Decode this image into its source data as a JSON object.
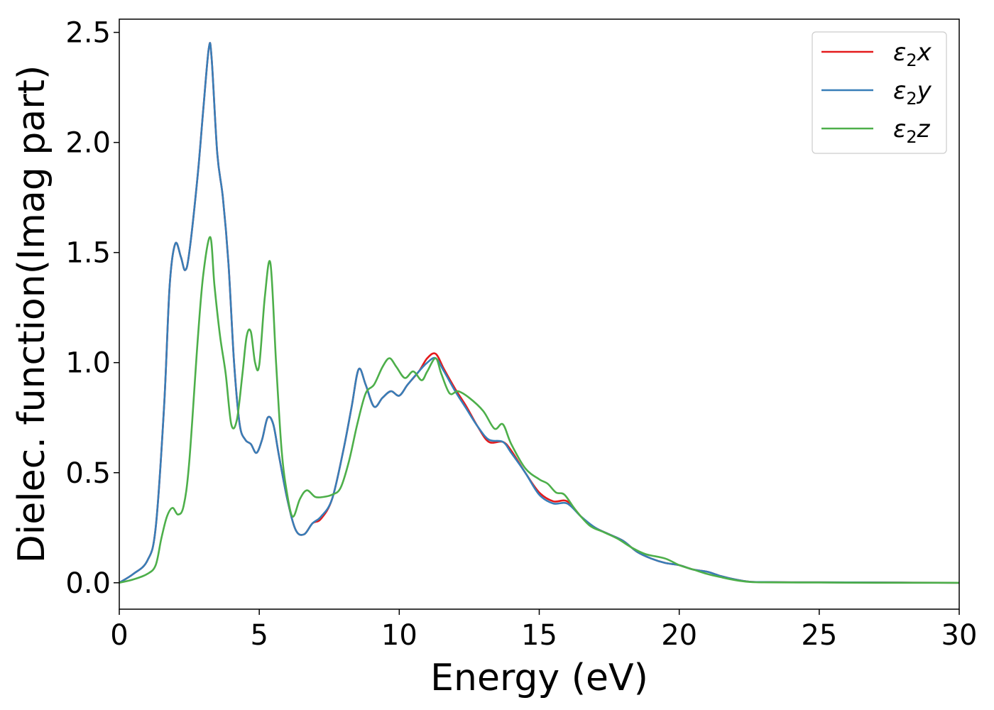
{
  "chart_data": {
    "type": "line",
    "xlabel": "Energy (eV)",
    "ylabel": "Dielec. function(Imag part)",
    "xlim": [
      0,
      30
    ],
    "ylim": [
      -0.12,
      2.56
    ],
    "xticks": [
      "0",
      "5",
      "10",
      "15",
      "20",
      "25",
      "30"
    ],
    "yticks": [
      "0.0",
      "0.5",
      "1.0",
      "1.5",
      "2.0",
      "2.5"
    ],
    "grid": false,
    "legend_position": "top-right",
    "series": [
      {
        "name": "x",
        "legend_label": "ε2x",
        "color": "#e41a1c",
        "x": [
          0,
          0.5,
          1.0,
          1.3,
          1.6,
          1.8,
          2.0,
          2.2,
          2.35,
          2.5,
          2.8,
          3.0,
          3.2,
          3.3,
          3.5,
          3.7,
          3.9,
          4.1,
          4.3,
          4.5,
          4.7,
          4.9,
          5.1,
          5.3,
          5.5,
          5.7,
          6.0,
          6.3,
          6.6,
          6.9,
          7.2,
          7.6,
          8.0,
          8.3,
          8.55,
          8.8,
          9.1,
          9.4,
          9.7,
          10.0,
          10.3,
          10.7,
          11.0,
          11.3,
          11.6,
          12.0,
          12.4,
          12.8,
          13.2,
          13.7,
          14.0,
          14.5,
          15.0,
          15.5,
          16.0,
          16.5,
          17.0,
          17.5,
          18.0,
          18.5,
          19.0,
          19.5,
          20.0,
          20.5,
          21.0,
          21.5,
          22.0,
          22.5,
          23.0,
          24.0,
          25.0,
          27.0,
          30.0
        ],
        "y": [
          0.0,
          0.04,
          0.1,
          0.25,
          0.8,
          1.35,
          1.54,
          1.48,
          1.42,
          1.5,
          1.85,
          2.15,
          2.43,
          2.38,
          1.95,
          1.75,
          1.45,
          1.0,
          0.72,
          0.65,
          0.63,
          0.59,
          0.65,
          0.75,
          0.72,
          0.58,
          0.38,
          0.24,
          0.22,
          0.27,
          0.29,
          0.38,
          0.6,
          0.8,
          0.97,
          0.9,
          0.8,
          0.84,
          0.87,
          0.85,
          0.9,
          0.96,
          1.02,
          1.04,
          0.97,
          0.88,
          0.8,
          0.71,
          0.64,
          0.64,
          0.6,
          0.5,
          0.41,
          0.37,
          0.37,
          0.3,
          0.25,
          0.22,
          0.19,
          0.14,
          0.11,
          0.09,
          0.08,
          0.06,
          0.05,
          0.03,
          0.015,
          0.005,
          0.003,
          0.002,
          0.002,
          0.001,
          0.0
        ]
      },
      {
        "name": "y",
        "legend_label": "ε2y",
        "color": "#377eb8",
        "x": [
          0,
          0.5,
          1.0,
          1.3,
          1.6,
          1.8,
          2.0,
          2.2,
          2.35,
          2.5,
          2.8,
          3.0,
          3.2,
          3.3,
          3.5,
          3.7,
          3.9,
          4.1,
          4.3,
          4.5,
          4.7,
          4.9,
          5.1,
          5.3,
          5.5,
          5.7,
          6.0,
          6.3,
          6.6,
          6.9,
          7.2,
          7.6,
          8.0,
          8.3,
          8.55,
          8.8,
          9.1,
          9.4,
          9.7,
          10.0,
          10.3,
          10.7,
          11.0,
          11.3,
          11.6,
          12.0,
          12.4,
          12.8,
          13.2,
          13.7,
          14.0,
          14.5,
          15.0,
          15.5,
          16.0,
          16.5,
          17.0,
          17.5,
          18.0,
          18.5,
          19.0,
          19.5,
          20.0,
          20.5,
          21.0,
          21.5,
          22.0,
          22.5,
          23.0,
          24.0,
          25.0,
          27.0,
          30.0
        ],
        "y": [
          0.0,
          0.04,
          0.1,
          0.25,
          0.8,
          1.35,
          1.54,
          1.48,
          1.42,
          1.5,
          1.85,
          2.15,
          2.43,
          2.38,
          1.95,
          1.75,
          1.45,
          1.0,
          0.72,
          0.65,
          0.63,
          0.59,
          0.65,
          0.75,
          0.72,
          0.58,
          0.38,
          0.24,
          0.22,
          0.27,
          0.3,
          0.38,
          0.6,
          0.8,
          0.97,
          0.9,
          0.8,
          0.84,
          0.87,
          0.85,
          0.9,
          0.96,
          1.0,
          1.02,
          0.96,
          0.87,
          0.79,
          0.71,
          0.65,
          0.64,
          0.59,
          0.5,
          0.4,
          0.36,
          0.36,
          0.3,
          0.25,
          0.22,
          0.19,
          0.14,
          0.11,
          0.09,
          0.08,
          0.06,
          0.05,
          0.03,
          0.015,
          0.005,
          0.003,
          0.002,
          0.002,
          0.001,
          0.0
        ]
      },
      {
        "name": "z",
        "legend_label": "ε2z",
        "color": "#4daf4a",
        "x": [
          0,
          0.5,
          1.0,
          1.3,
          1.5,
          1.7,
          1.9,
          2.1,
          2.3,
          2.5,
          2.8,
          3.0,
          3.25,
          3.4,
          3.6,
          3.8,
          4.0,
          4.2,
          4.4,
          4.55,
          4.7,
          4.85,
          5.0,
          5.2,
          5.4,
          5.6,
          5.8,
          6.0,
          6.2,
          6.45,
          6.7,
          7.0,
          7.3,
          7.6,
          7.9,
          8.2,
          8.5,
          8.8,
          9.1,
          9.4,
          9.65,
          9.9,
          10.2,
          10.5,
          10.8,
          11.0,
          11.3,
          11.5,
          11.8,
          12.1,
          12.5,
          13.0,
          13.4,
          13.7,
          14.0,
          14.5,
          15.0,
          15.3,
          15.6,
          15.9,
          16.3,
          16.8,
          17.3,
          17.8,
          18.3,
          18.8,
          19.5,
          20.0,
          20.5,
          21.0,
          21.5,
          22.0,
          22.5,
          23.0,
          25.0,
          27.0,
          30.0
        ],
        "y": [
          0.0,
          0.015,
          0.04,
          0.08,
          0.2,
          0.3,
          0.34,
          0.31,
          0.35,
          0.55,
          1.1,
          1.4,
          1.57,
          1.35,
          1.12,
          0.95,
          0.72,
          0.74,
          0.95,
          1.12,
          1.14,
          1.0,
          0.99,
          1.3,
          1.45,
          1.0,
          0.6,
          0.4,
          0.3,
          0.38,
          0.42,
          0.39,
          0.39,
          0.4,
          0.43,
          0.55,
          0.72,
          0.86,
          0.9,
          0.98,
          1.02,
          0.98,
          0.93,
          0.96,
          0.92,
          0.96,
          1.02,
          0.95,
          0.86,
          0.87,
          0.84,
          0.78,
          0.7,
          0.72,
          0.63,
          0.52,
          0.47,
          0.45,
          0.41,
          0.4,
          0.33,
          0.26,
          0.23,
          0.2,
          0.16,
          0.13,
          0.11,
          0.08,
          0.06,
          0.04,
          0.025,
          0.012,
          0.004,
          0.002,
          0.001,
          0.0,
          0.0
        ]
      }
    ]
  }
}
